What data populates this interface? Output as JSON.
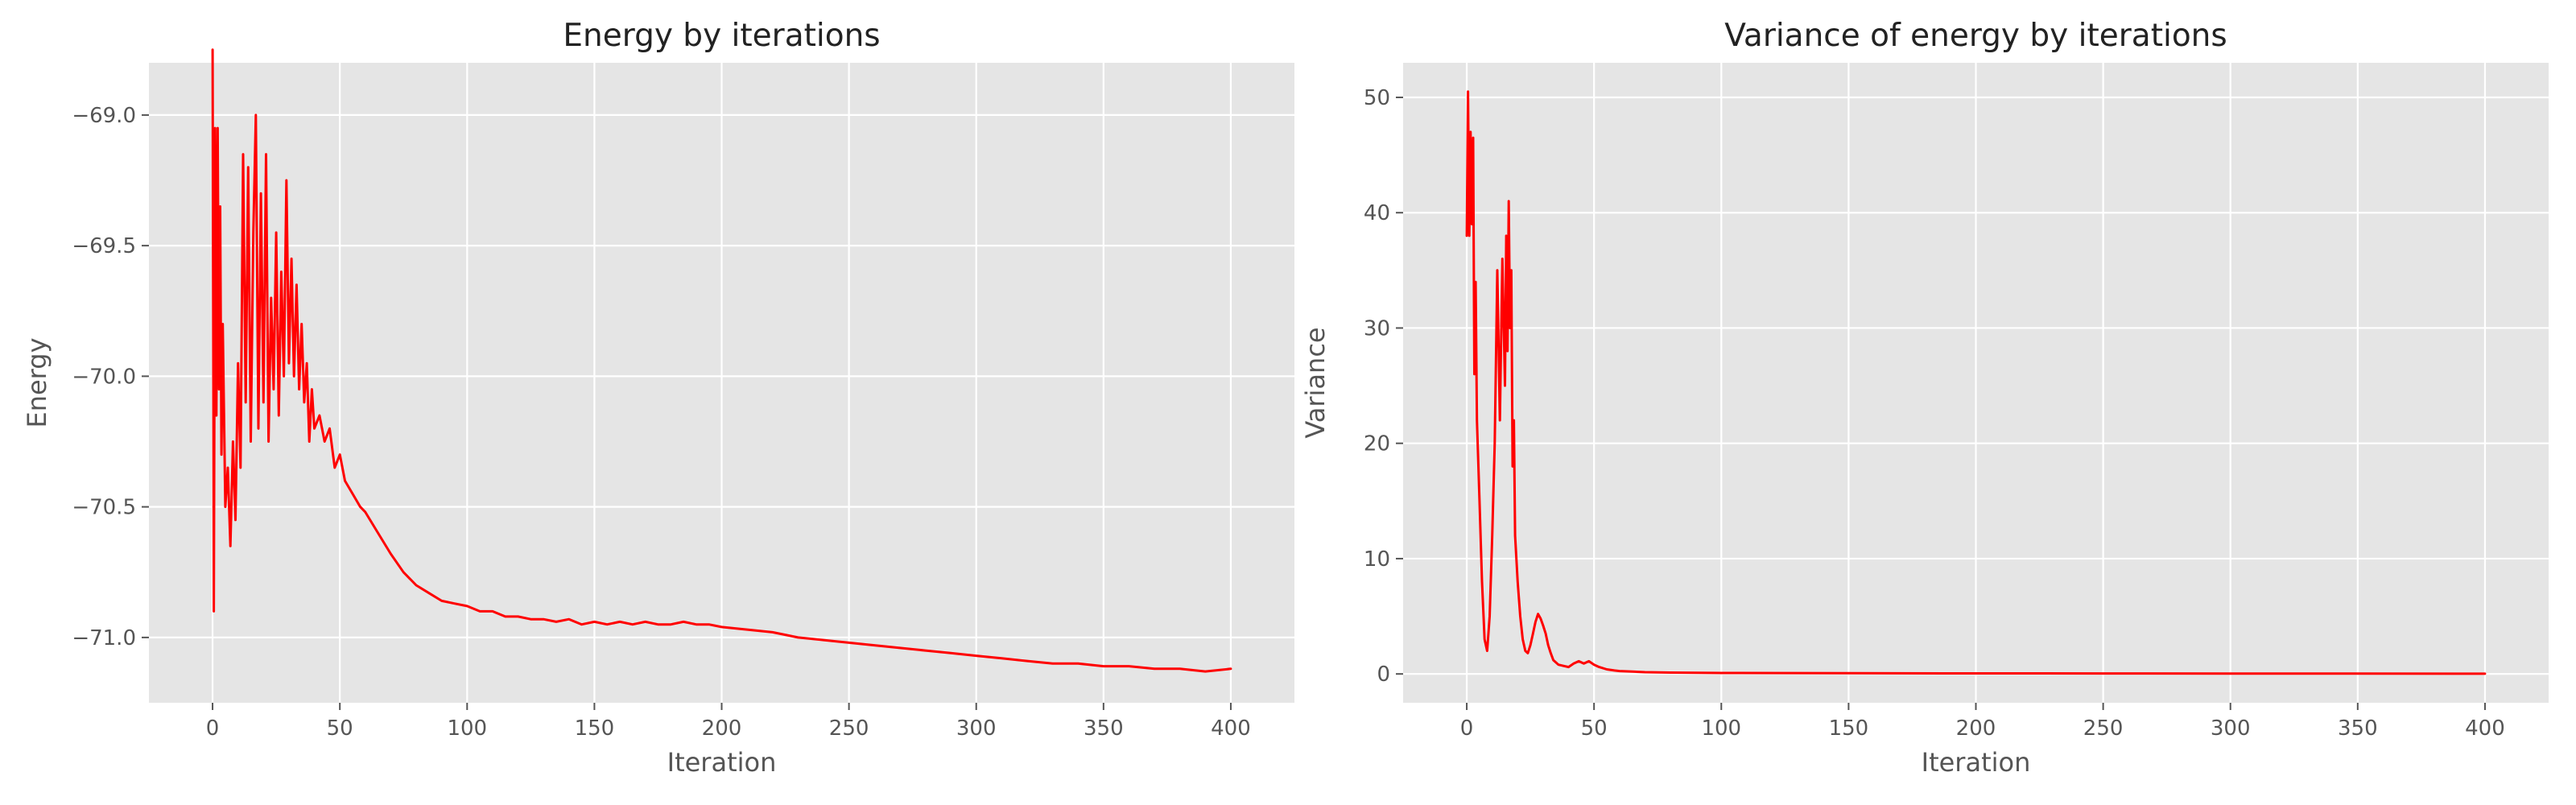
{
  "chart_data": [
    {
      "type": "line",
      "title": "Energy by iterations",
      "xlabel": "Iteration",
      "ylabel": "Energy",
      "xlim": [
        -25,
        425
      ],
      "ylim": [
        -71.25,
        -68.8
      ],
      "xticks": [
        0,
        50,
        100,
        150,
        200,
        250,
        300,
        350,
        400
      ],
      "yticks": [
        -71.0,
        -70.5,
        -70.0,
        -69.5,
        -69.0
      ],
      "ytick_labels": [
        "−71.0",
        "−70.5",
        "−70.0",
        "−69.5",
        "−69.0"
      ],
      "grid": true,
      "series": [
        {
          "color": "#ff0000",
          "x": [
            0,
            0.5,
            1,
            1.5,
            2,
            2.5,
            3,
            3.5,
            4,
            5,
            6,
            7,
            8,
            9,
            10,
            11,
            12,
            13,
            14,
            15,
            16,
            17,
            18,
            19,
            20,
            21,
            22,
            23,
            24,
            25,
            26,
            27,
            28,
            29,
            30,
            31,
            32,
            33,
            34,
            35,
            36,
            37,
            38,
            39,
            40,
            42,
            44,
            46,
            48,
            50,
            52,
            55,
            58,
            60,
            65,
            70,
            75,
            80,
            85,
            90,
            95,
            100,
            105,
            110,
            115,
            120,
            125,
            130,
            135,
            140,
            145,
            150,
            155,
            160,
            165,
            170,
            175,
            180,
            185,
            190,
            195,
            200,
            210,
            220,
            230,
            240,
            250,
            260,
            270,
            280,
            290,
            300,
            310,
            320,
            330,
            340,
            350,
            360,
            370,
            380,
            390,
            400
          ],
          "values": [
            -68.75,
            -70.9,
            -69.05,
            -70.15,
            -69.05,
            -70.05,
            -69.35,
            -70.3,
            -69.8,
            -70.5,
            -70.35,
            -70.65,
            -70.25,
            -70.55,
            -69.95,
            -70.35,
            -69.15,
            -70.1,
            -69.2,
            -70.25,
            -69.45,
            -69.0,
            -70.2,
            -69.3,
            -70.1,
            -69.15,
            -70.25,
            -69.7,
            -70.05,
            -69.45,
            -70.15,
            -69.6,
            -70.0,
            -69.25,
            -69.95,
            -69.55,
            -70.0,
            -69.65,
            -70.05,
            -69.8,
            -70.1,
            -69.95,
            -70.25,
            -70.05,
            -70.2,
            -70.15,
            -70.25,
            -70.2,
            -70.35,
            -70.3,
            -70.4,
            -70.45,
            -70.5,
            -70.52,
            -70.6,
            -70.68,
            -70.75,
            -70.8,
            -70.83,
            -70.86,
            -70.87,
            -70.88,
            -70.9,
            -70.9,
            -70.92,
            -70.92,
            -70.93,
            -70.93,
            -70.94,
            -70.93,
            -70.95,
            -70.94,
            -70.95,
            -70.94,
            -70.95,
            -70.94,
            -70.95,
            -70.95,
            -70.94,
            -70.95,
            -70.95,
            -70.96,
            -70.97,
            -70.98,
            -71.0,
            -71.01,
            -71.02,
            -71.03,
            -71.04,
            -71.05,
            -71.06,
            -71.07,
            -71.08,
            -71.09,
            -71.1,
            -71.1,
            -71.11,
            -71.11,
            -71.12,
            -71.12,
            -71.13,
            -71.12
          ]
        }
      ]
    },
    {
      "type": "line",
      "title": "Variance of energy by iterations",
      "xlabel": "Iteration",
      "ylabel": "Variance",
      "xlim": [
        -25,
        425
      ],
      "ylim": [
        -2.5,
        53
      ],
      "xticks": [
        0,
        50,
        100,
        150,
        200,
        250,
        300,
        350,
        400
      ],
      "yticks": [
        0,
        10,
        20,
        30,
        40,
        50
      ],
      "ytick_labels": [
        "0",
        "10",
        "20",
        "30",
        "40",
        "50"
      ],
      "grid": true,
      "series": [
        {
          "color": "#ff0000",
          "x": [
            0,
            0.5,
            1,
            1.5,
            2,
            2.5,
            3,
            3.5,
            4,
            5,
            6,
            7,
            8,
            9,
            10,
            11,
            12,
            13,
            14,
            15,
            15.5,
            16,
            16.5,
            17,
            17.5,
            18,
            18.5,
            19,
            20,
            21,
            22,
            23,
            24,
            25,
            26,
            27,
            28,
            29,
            30,
            31,
            32,
            33,
            34,
            36,
            38,
            40,
            42,
            44,
            46,
            48,
            50,
            52,
            55,
            58,
            60,
            65,
            70,
            80,
            90,
            100,
            150,
            200,
            250,
            300,
            350,
            400
          ],
          "values": [
            38,
            50.5,
            38,
            47,
            39,
            46.5,
            26,
            34,
            22,
            15,
            8,
            3,
            2,
            5,
            12,
            20,
            35,
            22,
            36,
            25,
            38,
            28,
            41,
            30,
            35,
            18,
            22,
            12,
            8,
            5,
            3,
            2,
            1.8,
            2.5,
            3.5,
            4.5,
            5.2,
            4.8,
            4.2,
            3.5,
            2.5,
            1.8,
            1.2,
            0.8,
            0.7,
            0.6,
            0.9,
            1.1,
            0.9,
            1.1,
            0.8,
            0.6,
            0.4,
            0.3,
            0.25,
            0.2,
            0.15,
            0.12,
            0.1,
            0.08,
            0.06,
            0.05,
            0.04,
            0.03,
            0.03,
            0.02
          ]
        }
      ]
    }
  ]
}
